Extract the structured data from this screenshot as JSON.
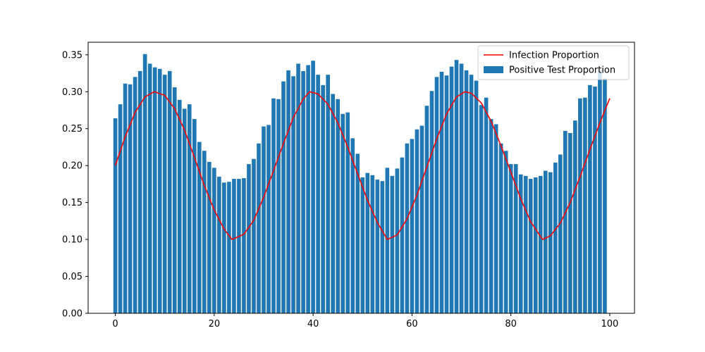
{
  "chart_data": {
    "type": "bar",
    "title": "",
    "xlabel": "",
    "ylabel": "",
    "xlim": [
      -5.5,
      105
    ],
    "ylim": [
      0,
      0.367
    ],
    "x_ticks": [
      0,
      20,
      40,
      60,
      80,
      100
    ],
    "x_tick_labels": [
      "0",
      "20",
      "40",
      "60",
      "80",
      "100"
    ],
    "y_ticks": [
      0,
      0.05,
      0.1,
      0.15,
      0.2,
      0.25,
      0.3,
      0.35
    ],
    "y_tick_labels": [
      "0.00",
      "0.05",
      "0.10",
      "0.15",
      "0.20",
      "0.25",
      "0.30",
      "0.35"
    ],
    "grid": false,
    "legend_position": "top-right",
    "series": [
      {
        "name": "Infection Proportion",
        "type": "line",
        "color": "#ff0000",
        "x": [
          0,
          2,
          4,
          6,
          7.85,
          10,
          12,
          14,
          16,
          18,
          20,
          22,
          23.6,
          26,
          28,
          30,
          32,
          34,
          36,
          38,
          39.3,
          41,
          43,
          45,
          47,
          49,
          51,
          53,
          55,
          57,
          59,
          61,
          63,
          65,
          67,
          69,
          70.7,
          72,
          74,
          76,
          78,
          80,
          82,
          84,
          86.4,
          88,
          90,
          92,
          94,
          96,
          98,
          100
        ],
        "y": [
          0.2,
          0.239,
          0.272,
          0.293,
          0.3,
          0.295,
          0.277,
          0.248,
          0.211,
          0.173,
          0.14,
          0.114,
          0.1,
          0.107,
          0.126,
          0.157,
          0.193,
          0.23,
          0.265,
          0.29,
          0.3,
          0.297,
          0.283,
          0.258,
          0.225,
          0.189,
          0.153,
          0.123,
          0.1,
          0.106,
          0.128,
          0.16,
          0.198,
          0.236,
          0.27,
          0.293,
          0.3,
          0.298,
          0.285,
          0.26,
          0.227,
          0.191,
          0.155,
          0.124,
          0.1,
          0.105,
          0.122,
          0.15,
          0.185,
          0.222,
          0.258,
          0.291
        ]
      },
      {
        "name": "Positive Test Proportion",
        "type": "bar",
        "color": "#1f77b4",
        "x": [
          0,
          1,
          2,
          3,
          4,
          5,
          6,
          7,
          8,
          9,
          10,
          11,
          12,
          13,
          14,
          15,
          16,
          17,
          18,
          19,
          20,
          21,
          22,
          23,
          24,
          25,
          26,
          27,
          28,
          29,
          30,
          31,
          32,
          33,
          34,
          35,
          36,
          37,
          38,
          39,
          40,
          41,
          42,
          43,
          44,
          45,
          46,
          47,
          48,
          49,
          50,
          51,
          52,
          53,
          54,
          55,
          56,
          57,
          58,
          59,
          60,
          61,
          62,
          63,
          64,
          65,
          66,
          67,
          68,
          69,
          70,
          71,
          72,
          73,
          74,
          75,
          76,
          77,
          78,
          79,
          80,
          81,
          82,
          83,
          84,
          85,
          86,
          87,
          88,
          89,
          90,
          91,
          92,
          93,
          94,
          95,
          96,
          97,
          98,
          99
        ],
        "values": [
          0.264,
          0.283,
          0.311,
          0.31,
          0.32,
          0.328,
          0.351,
          0.338,
          0.333,
          0.331,
          0.323,
          0.328,
          0.306,
          0.289,
          0.277,
          0.283,
          0.263,
          0.232,
          0.22,
          0.205,
          0.197,
          0.185,
          0.177,
          0.178,
          0.182,
          0.182,
          0.183,
          0.202,
          0.209,
          0.23,
          0.253,
          0.255,
          0.291,
          0.29,
          0.314,
          0.329,
          0.321,
          0.338,
          0.328,
          0.336,
          0.342,
          0.323,
          0.309,
          0.323,
          0.297,
          0.29,
          0.27,
          0.272,
          0.237,
          0.216,
          0.184,
          0.19,
          0.187,
          0.181,
          0.179,
          0.197,
          0.186,
          0.196,
          0.211,
          0.23,
          0.236,
          0.249,
          0.254,
          0.281,
          0.301,
          0.32,
          0.327,
          0.322,
          0.334,
          0.343,
          0.338,
          0.329,
          0.323,
          0.315,
          0.282,
          0.292,
          0.263,
          0.256,
          0.23,
          0.22,
          0.202,
          0.202,
          0.188,
          0.186,
          0.182,
          0.184,
          0.186,
          0.193,
          0.191,
          0.204,
          0.215,
          0.247,
          0.244,
          0.261,
          0.291,
          0.292,
          0.309,
          0.307,
          0.329,
          0.318
        ]
      }
    ]
  }
}
